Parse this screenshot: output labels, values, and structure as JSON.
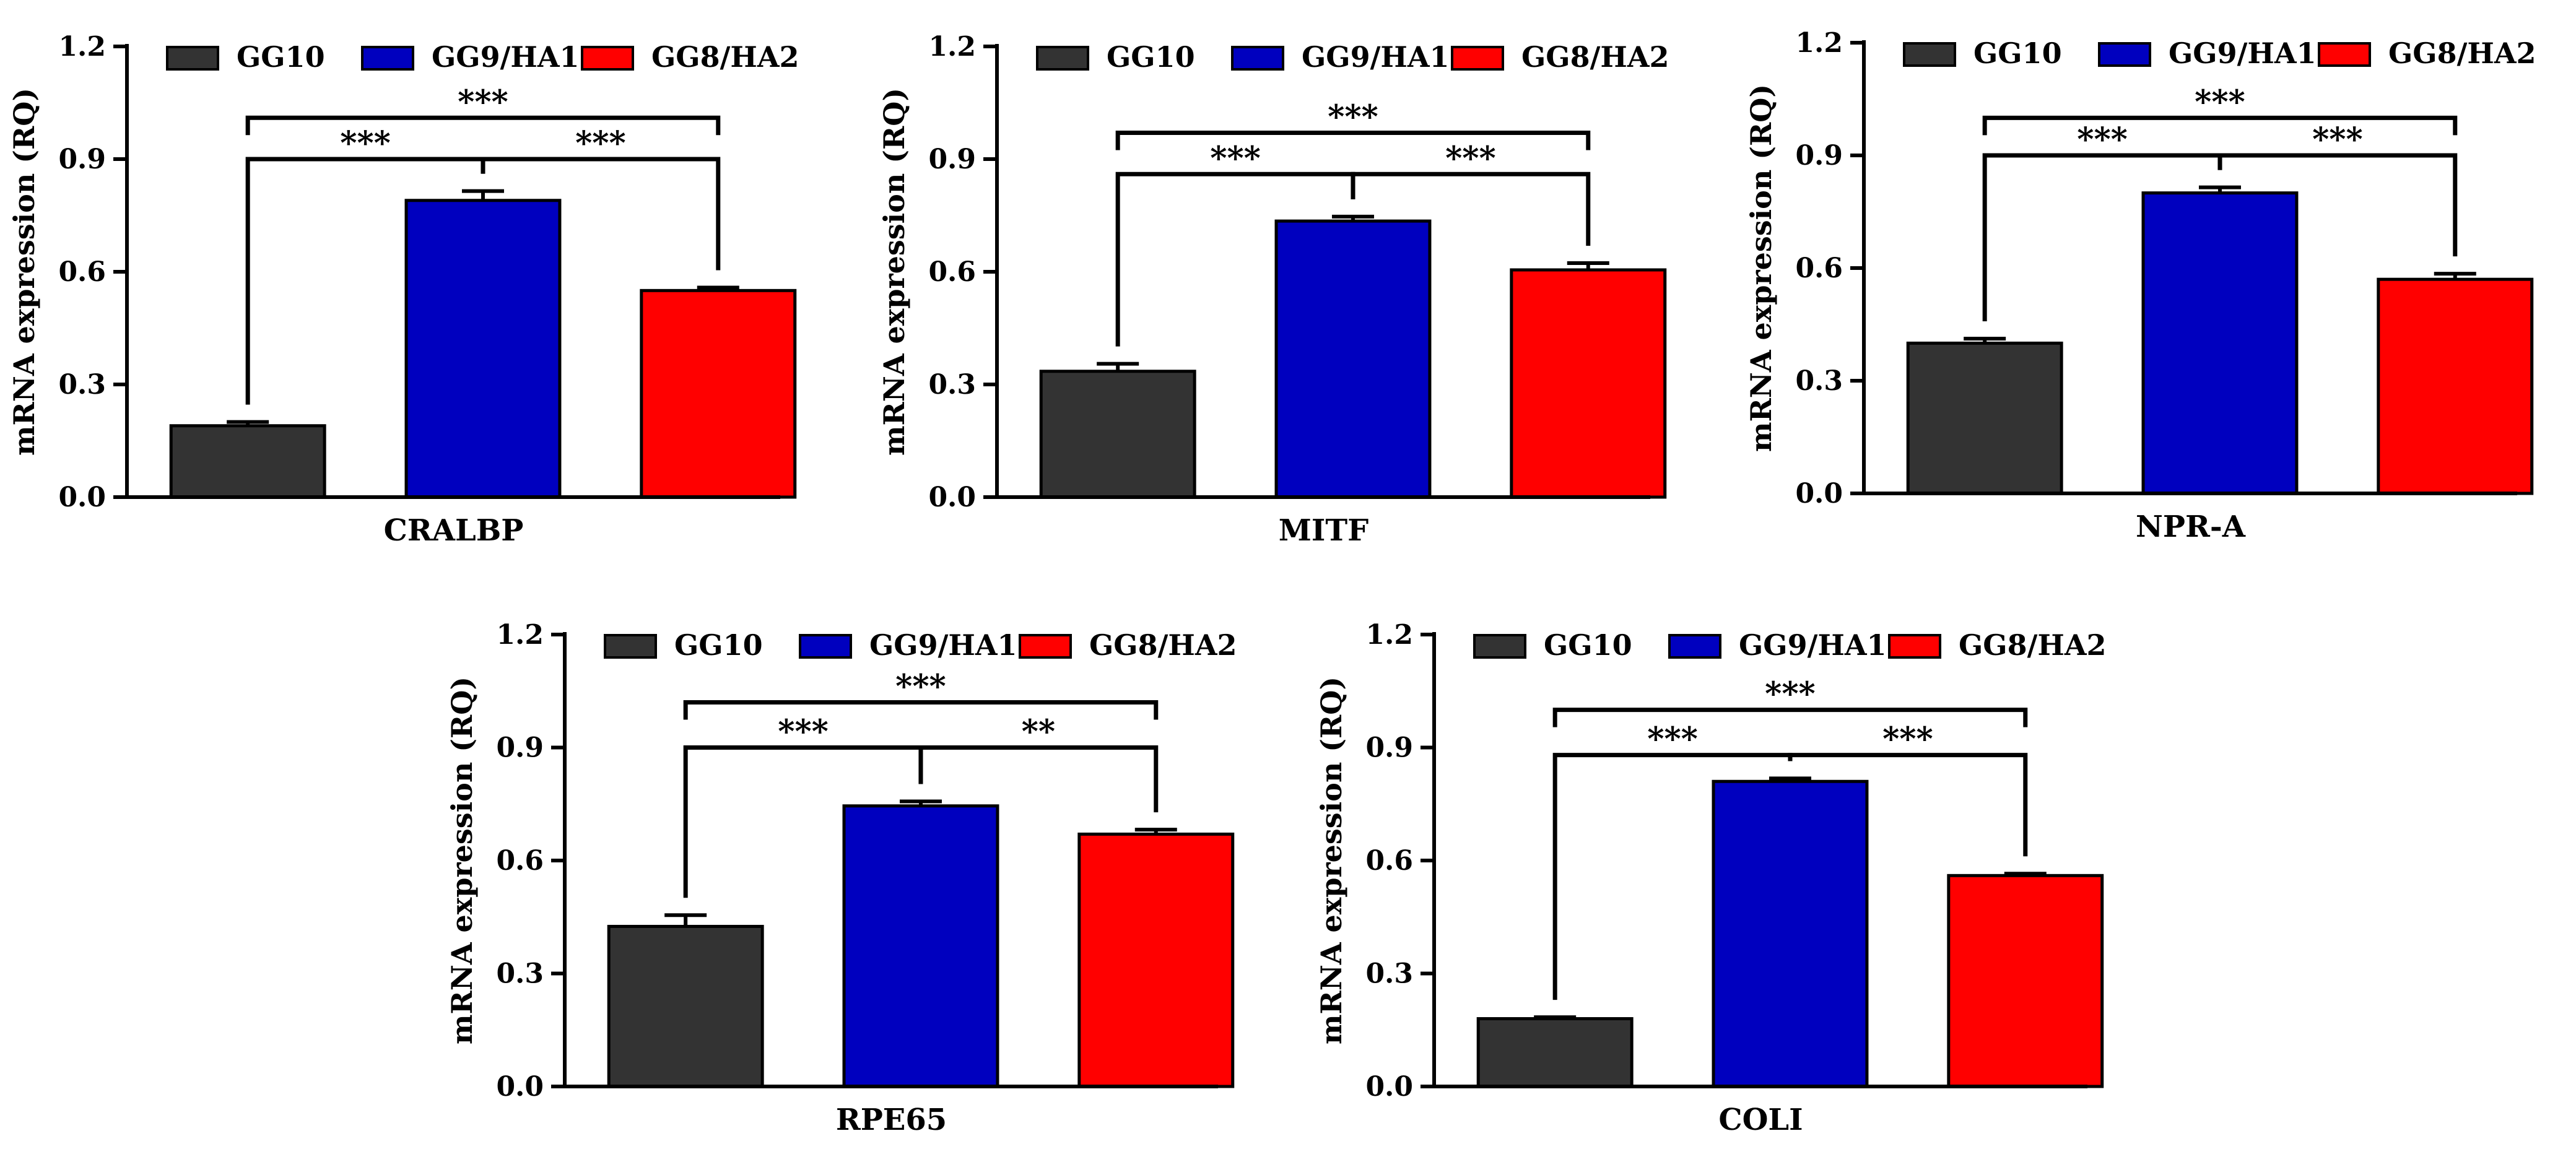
{
  "colors": {
    "GG10": "#333333",
    "GG9/HA1": "#0000bf",
    "GG8/HA2": "#ff0000",
    "axis": "#000000"
  },
  "legend": [
    "GG10",
    "GG9/HA1",
    "GG8/HA2"
  ],
  "chart_data": [
    {
      "type": "bar",
      "title": "",
      "xlabel": "CRALBP",
      "ylabel": "mRNA expression (RQ)",
      "ylim": [
        0,
        1.2
      ],
      "yticks": [
        "0.0",
        "0.3",
        "0.6",
        "0.9",
        "1.2"
      ],
      "categories": [
        "GG10",
        "GG9/HA1",
        "GG8/HA2"
      ],
      "values": [
        0.19,
        0.79,
        0.55
      ],
      "errors": [
        0.01,
        0.025,
        0.008
      ],
      "significance": [
        {
          "from": 0,
          "to": 1,
          "label": "***",
          "level": 0.9
        },
        {
          "from": 1,
          "to": 2,
          "label": "***",
          "level": 0.9
        },
        {
          "from": 0,
          "to": 2,
          "label": "***",
          "level": 1.01
        }
      ]
    },
    {
      "type": "bar",
      "title": "",
      "xlabel": "MITF",
      "ylabel": "mRNA expression (RQ)",
      "ylim": [
        0,
        1.2
      ],
      "yticks": [
        "0.0",
        "0.3",
        "0.6",
        "0.9",
        "1.2"
      ],
      "categories": [
        "GG10",
        "GG9/HA1",
        "GG8/HA2"
      ],
      "values": [
        0.335,
        0.735,
        0.605
      ],
      "errors": [
        0.02,
        0.012,
        0.018
      ],
      "significance": [
        {
          "from": 0,
          "to": 1,
          "label": "***",
          "level": 0.86
        },
        {
          "from": 1,
          "to": 2,
          "label": "***",
          "level": 0.86
        },
        {
          "from": 0,
          "to": 2,
          "label": "***",
          "level": 0.97
        }
      ]
    },
    {
      "type": "bar",
      "title": "",
      "xlabel": "NPR-A",
      "ylabel": "mRNA expression (RQ)",
      "ylim": [
        0,
        1.2
      ],
      "yticks": [
        "0.0",
        "0.3",
        "0.6",
        "0.9",
        "1.2"
      ],
      "categories": [
        "GG10",
        "GG9/HA1",
        "GG8/HA2"
      ],
      "values": [
        0.4,
        0.8,
        0.57
      ],
      "errors": [
        0.012,
        0.015,
        0.015
      ],
      "significance": [
        {
          "from": 0,
          "to": 1,
          "label": "***",
          "level": 0.9
        },
        {
          "from": 1,
          "to": 2,
          "label": "***",
          "level": 0.9
        },
        {
          "from": 0,
          "to": 2,
          "label": "***",
          "level": 1.0
        }
      ]
    },
    {
      "type": "bar",
      "title": "",
      "xlabel": "RPE65",
      "ylabel": "mRNA expression (RQ)",
      "ylim": [
        0,
        1.2
      ],
      "yticks": [
        "0.0",
        "0.3",
        "0.6",
        "0.9",
        "1.2"
      ],
      "categories": [
        "GG10",
        "GG9/HA1",
        "GG8/HA2"
      ],
      "values": [
        0.425,
        0.745,
        0.67
      ],
      "errors": [
        0.03,
        0.012,
        0.012
      ],
      "significance": [
        {
          "from": 0,
          "to": 1,
          "label": "***",
          "level": 0.9
        },
        {
          "from": 1,
          "to": 2,
          "label": "**",
          "level": 0.9
        },
        {
          "from": 0,
          "to": 2,
          "label": "***",
          "level": 1.02
        }
      ]
    },
    {
      "type": "bar",
      "title": "",
      "xlabel": "COLI",
      "ylabel": "mRNA expression (RQ)",
      "ylim": [
        0,
        1.2
      ],
      "yticks": [
        "0.0",
        "0.3",
        "0.6",
        "0.9",
        "1.2"
      ],
      "categories": [
        "GG10",
        "GG9/HA1",
        "GG8/HA2"
      ],
      "values": [
        0.18,
        0.81,
        0.56
      ],
      "errors": [
        0.004,
        0.008,
        0.005
      ],
      "significance": [
        {
          "from": 0,
          "to": 1,
          "label": "***",
          "level": 0.88
        },
        {
          "from": 1,
          "to": 2,
          "label": "***",
          "level": 0.88
        },
        {
          "from": 0,
          "to": 2,
          "label": "***",
          "level": 1.0
        }
      ]
    }
  ]
}
